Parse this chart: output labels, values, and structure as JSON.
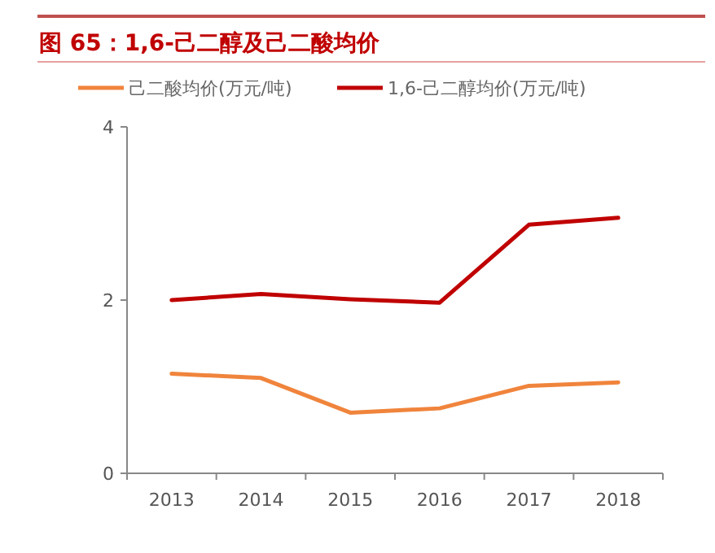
{
  "chart_data": {
    "type": "line",
    "title": "图 65：1,6-己二醇及己二酸均价",
    "categories": [
      "2013",
      "2014",
      "2015",
      "2016",
      "2017",
      "2018"
    ],
    "series": [
      {
        "name": "己二酸均价(万元/吨)",
        "color": "#f0843c",
        "values": [
          1.15,
          1.1,
          0.7,
          0.75,
          1.01,
          1.05
        ]
      },
      {
        "name": "1,6-己二醇均价(万元/吨)",
        "color": "#c00000",
        "values": [
          2.0,
          2.07,
          2.01,
          1.97,
          2.87,
          2.95
        ]
      }
    ],
    "ylim": [
      0,
      4
    ],
    "yticks": [
      0,
      2,
      4
    ],
    "grid": false,
    "legend": "top",
    "marker": "none",
    "line_style": "solid"
  }
}
